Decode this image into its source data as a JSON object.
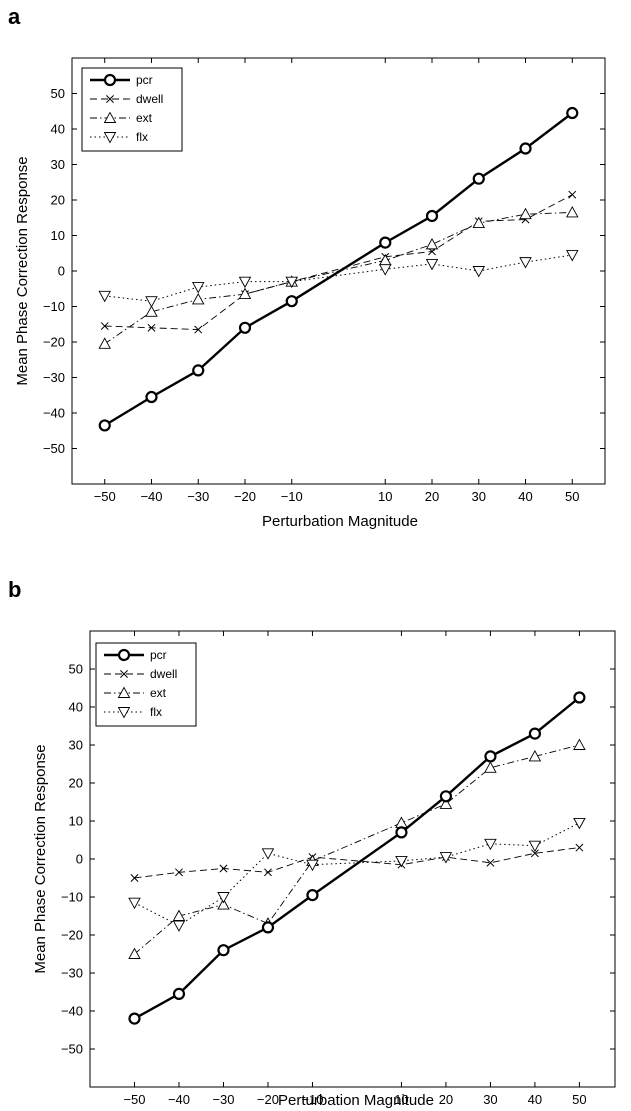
{
  "figure": {
    "panels": [
      "a",
      "b"
    ]
  },
  "chart_data": [
    {
      "panel": "a",
      "type": "line",
      "xlabel": "Perturbation Magnitude",
      "ylabel": "Mean Phase Correction Response",
      "xlim": [
        -57,
        57
      ],
      "ylim": [
        -60,
        60
      ],
      "xticks": [
        -50,
        -40,
        -30,
        -20,
        -10,
        10,
        20,
        30,
        40,
        50
      ],
      "yticks": [
        -50,
        -40,
        -30,
        -20,
        -10,
        0,
        10,
        20,
        30,
        40,
        50
      ],
      "legend": {
        "position": "top-left"
      },
      "grid": false,
      "x": [
        -50,
        -40,
        -30,
        -20,
        -10,
        10,
        20,
        30,
        40,
        50
      ],
      "series": [
        {
          "name": "pcr",
          "style": "solid-bold",
          "marker": "circle",
          "values": [
            -43.5,
            -35.5,
            -28,
            -16,
            -8.5,
            8,
            15.5,
            26,
            34.5,
            44.5
          ]
        },
        {
          "name": "dwell",
          "style": "dashed",
          "marker": "x",
          "values": [
            -15.5,
            -16,
            -16.5,
            -6.5,
            -3,
            4,
            5.5,
            14,
            14.5,
            21.5
          ]
        },
        {
          "name": "ext",
          "style": "dashdot",
          "marker": "triangle-up",
          "values": [
            -20.5,
            -11.5,
            -8,
            -6.5,
            -3,
            3,
            7.5,
            13.5,
            16,
            16.5
          ]
        },
        {
          "name": "flx",
          "style": "dotted",
          "marker": "triangle-down",
          "values": [
            -7,
            -8.5,
            -4.5,
            -3,
            -3,
            0.5,
            2,
            0,
            2.5,
            4.5
          ]
        }
      ]
    },
    {
      "panel": "b",
      "type": "line",
      "xlabel": "Perturbation Magnitude",
      "ylabel": "Mean Phase Correction Response",
      "xlim": [
        -60,
        58
      ],
      "ylim": [
        -60,
        60
      ],
      "xticks": [
        -50,
        -40,
        -30,
        -20,
        -10,
        10,
        20,
        30,
        40,
        50
      ],
      "yticks": [
        -50,
        -40,
        -30,
        -20,
        -10,
        0,
        10,
        20,
        30,
        40,
        50
      ],
      "legend": {
        "position": "top-left"
      },
      "grid": false,
      "x": [
        -50,
        -40,
        -30,
        -20,
        -10,
        10,
        20,
        30,
        40,
        50
      ],
      "series": [
        {
          "name": "pcr",
          "style": "solid-bold",
          "marker": "circle",
          "values": [
            -42,
            -35.5,
            -24,
            -18,
            -9.5,
            7,
            16.5,
            27,
            33,
            42.5
          ]
        },
        {
          "name": "dwell",
          "style": "dashed",
          "marker": "x",
          "values": [
            -5,
            -3.5,
            -2.5,
            -3.5,
            0.5,
            -1.5,
            0.5,
            -1,
            1.5,
            3
          ]
        },
        {
          "name": "ext",
          "style": "dashdot",
          "marker": "triangle-up",
          "values": [
            -25,
            -15,
            -12,
            -17,
            -0.5,
            9.5,
            14.5,
            24,
            27,
            30
          ]
        },
        {
          "name": "flx",
          "style": "dotted",
          "marker": "triangle-down",
          "values": [
            -11.5,
            -17.5,
            -10,
            1.5,
            -1.5,
            -0.5,
            0.5,
            4,
            3.5,
            9.5
          ]
        }
      ]
    }
  ]
}
